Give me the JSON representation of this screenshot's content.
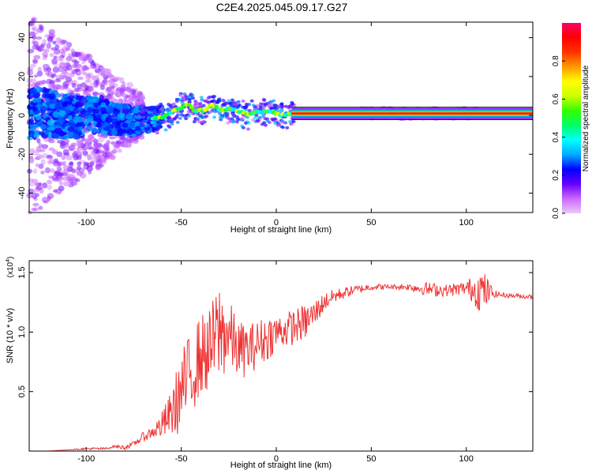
{
  "title": "C2E4.2025.045.09.17.G27",
  "chart_data": [
    {
      "type": "heatmap",
      "xlabel": "Height of straight line (km)",
      "ylabel": "Frequency (Hz)",
      "xlim": [
        -130,
        135
      ],
      "ylim": [
        -50,
        48
      ],
      "xticks": [
        -100,
        -50,
        0,
        50,
        100
      ],
      "yticks": [
        -40,
        -20,
        0,
        20,
        40
      ],
      "colorbar": {
        "label": "Normalized spectral amplitude",
        "range": [
          0,
          1
        ],
        "ticks": [
          0.0,
          0.2,
          0.4,
          0.6,
          0.8
        ],
        "colors": [
          "#e6ccf5",
          "#cc66ff",
          "#6600ff",
          "#0000ff",
          "#00aaff",
          "#00ffff",
          "#00ff66",
          "#33ff00",
          "#ccff00",
          "#ffff00",
          "#ff9900",
          "#ff3300",
          "#ff0000",
          "#ff0066"
        ]
      },
      "ridge": [
        {
          "x": -125,
          "y": 2
        },
        {
          "x": -115,
          "y": 0
        },
        {
          "x": -105,
          "y": -1
        },
        {
          "x": -95,
          "y": 1
        },
        {
          "x": -85,
          "y": -2
        },
        {
          "x": -75,
          "y": -3
        },
        {
          "x": -65,
          "y": -2
        },
        {
          "x": -58,
          "y": 0
        },
        {
          "x": -52,
          "y": 3
        },
        {
          "x": -47,
          "y": 6
        },
        {
          "x": -42,
          "y": 2
        },
        {
          "x": -38,
          "y": 3
        },
        {
          "x": -34,
          "y": 5
        },
        {
          "x": -30,
          "y": 3
        },
        {
          "x": -25,
          "y": 3
        },
        {
          "x": -20,
          "y": 2
        },
        {
          "x": -15,
          "y": 0
        },
        {
          "x": -10,
          "y": 2
        },
        {
          "x": -5,
          "y": 2
        },
        {
          "x": 0,
          "y": 1
        },
        {
          "x": 5,
          "y": 0
        },
        {
          "x": 10,
          "y": 1
        },
        {
          "x": 135,
          "y": 1
        }
      ]
    },
    {
      "type": "line",
      "xlabel": "Height of straight line (km)",
      "ylabel": "SNR (10 * v/v)",
      "multiplier": "(x10",
      "multiplier_exp": "4",
      "multiplier_close": ")",
      "xlim": [
        -130,
        135
      ],
      "ylim": [
        0,
        1.6
      ],
      "xticks": [
        -100,
        -50,
        0,
        50,
        100
      ],
      "yticks": [
        0.5,
        1.0,
        1.5
      ],
      "color": "#ee3333",
      "x": [
        -130,
        -120,
        -110,
        -100,
        -90,
        -85,
        -80,
        -75,
        -70,
        -65,
        -60,
        -55,
        -50,
        -45,
        -40,
        -35,
        -30,
        -25,
        -20,
        -15,
        -10,
        -5,
        0,
        5,
        10,
        15,
        20,
        25,
        30,
        40,
        50,
        60,
        70,
        80,
        90,
        100,
        108,
        115,
        120,
        130,
        135
      ],
      "y": [
        0.0,
        0.0,
        0.01,
        0.02,
        0.02,
        0.04,
        0.03,
        0.06,
        0.12,
        0.16,
        0.22,
        0.32,
        0.5,
        0.65,
        0.8,
        0.85,
        1.0,
        0.98,
        0.85,
        0.85,
        0.9,
        0.95,
        1.0,
        1.02,
        1.05,
        1.08,
        1.15,
        1.25,
        1.3,
        1.35,
        1.38,
        1.38,
        1.38,
        1.36,
        1.35,
        1.37,
        1.35,
        1.32,
        1.31,
        1.3,
        1.3
      ],
      "noise": [
        0.0,
        0.0,
        0.0,
        0.01,
        0.01,
        0.01,
        0.02,
        0.02,
        0.04,
        0.05,
        0.12,
        0.2,
        0.35,
        0.35,
        0.35,
        0.35,
        0.45,
        0.3,
        0.25,
        0.22,
        0.2,
        0.2,
        0.15,
        0.15,
        0.15,
        0.15,
        0.12,
        0.08,
        0.06,
        0.04,
        0.03,
        0.02,
        0.03,
        0.06,
        0.05,
        0.06,
        0.2,
        0.03,
        0.02,
        0.02,
        0.02
      ]
    }
  ]
}
